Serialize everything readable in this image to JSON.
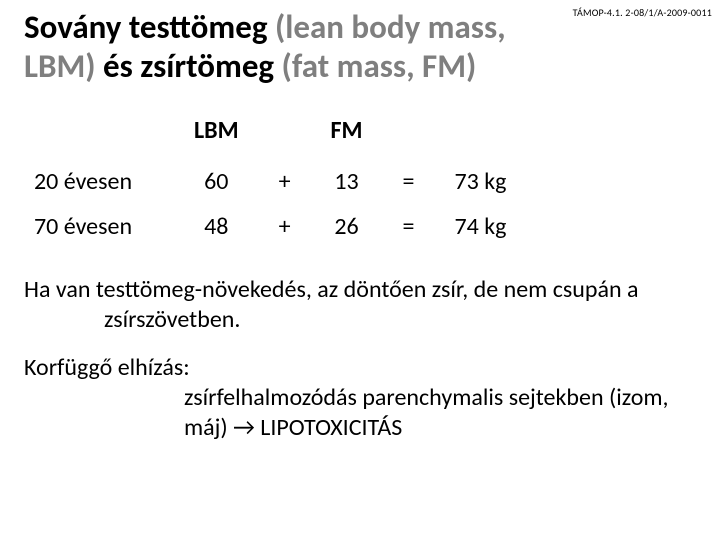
{
  "header_code": "TÁMOP-4.1. 2-08/1/A-2009-0011",
  "title": {
    "p1_dark": "Sovány testtömeg ",
    "p1_gray": "(lean body mass,",
    "p2_gray": "LBM) ",
    "p2_dark": "és zsírtömeg",
    "p2_gray2": " (fat mass, FM)"
  },
  "table": {
    "col_lbm": "LBM",
    "col_fm": "FM",
    "rows": [
      {
        "label": "20 évesen",
        "lbm": "60",
        "op": "+",
        "fm": "13",
        "eq": "=",
        "total": "73 kg"
      },
      {
        "label": "70 évesen",
        "lbm": "48",
        "op": "+",
        "fm": "26",
        "eq": "=",
        "total": "74 kg"
      }
    ]
  },
  "para1": "Ha van testtömeg-növekedés, az döntően zsír, de nem csupán a zsírszövetben.",
  "para2a": "Korfüggő elhízás:",
  "para2b": "zsírfelhalmozódás parenchymalis sejtekben (izom, máj) → LIPOTOXICITÁS"
}
